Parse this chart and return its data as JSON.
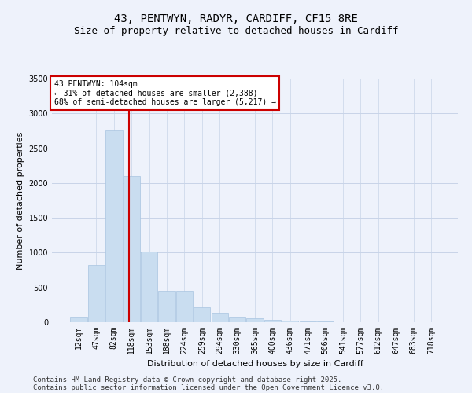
{
  "title_line1": "43, PENTWYN, RADYR, CARDIFF, CF15 8RE",
  "title_line2": "Size of property relative to detached houses in Cardiff",
  "xlabel": "Distribution of detached houses by size in Cardiff",
  "ylabel": "Number of detached properties",
  "categories": [
    "12sqm",
    "47sqm",
    "82sqm",
    "118sqm",
    "153sqm",
    "188sqm",
    "224sqm",
    "259sqm",
    "294sqm",
    "330sqm",
    "365sqm",
    "400sqm",
    "436sqm",
    "471sqm",
    "506sqm",
    "541sqm",
    "577sqm",
    "612sqm",
    "647sqm",
    "683sqm",
    "718sqm"
  ],
  "values": [
    75,
    820,
    2750,
    2100,
    1020,
    450,
    450,
    210,
    135,
    75,
    55,
    35,
    20,
    12,
    8,
    5,
    3,
    2,
    1,
    1,
    1
  ],
  "bar_color": "#c9ddf0",
  "bar_edge_color": "#a8c4e0",
  "red_line_index": 2.85,
  "annotation_text": "43 PENTWYN: 104sqm\n← 31% of detached houses are smaller (2,388)\n68% of semi-detached houses are larger (5,217) →",
  "annotation_box_color": "#ffffff",
  "annotation_box_edge": "#cc0000",
  "vline_color": "#cc0000",
  "ylim": [
    0,
    3500
  ],
  "yticks": [
    0,
    500,
    1000,
    1500,
    2000,
    2500,
    3000,
    3500
  ],
  "footer_line1": "Contains HM Land Registry data © Crown copyright and database right 2025.",
  "footer_line2": "Contains public sector information licensed under the Open Government Licence v3.0.",
  "bg_color": "#eef2fb",
  "grid_color": "#c8d4e8",
  "title_fontsize": 10,
  "subtitle_fontsize": 9,
  "axis_label_fontsize": 8,
  "tick_fontsize": 7,
  "footer_fontsize": 6.5,
  "annotation_fontsize": 7
}
